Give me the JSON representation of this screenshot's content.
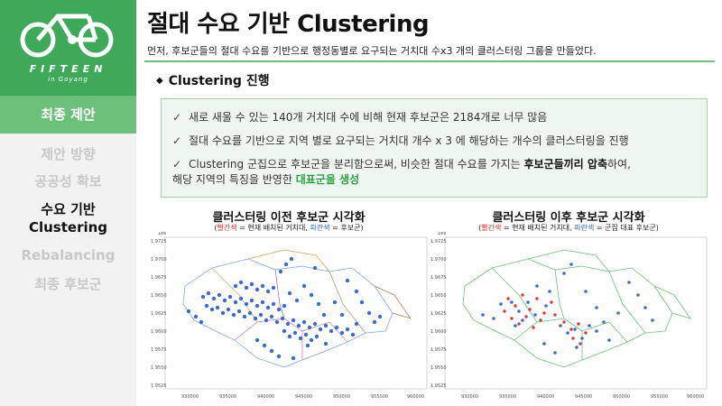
{
  "brand": {
    "name": "FIFTEEN",
    "sub": "in Goyang",
    "color": "#3fa95a"
  },
  "sidebar": {
    "active_section": "최종 제안",
    "items": [
      {
        "label": "제안 방향",
        "current": false
      },
      {
        "label": "공공성 확보",
        "current": false
      },
      {
        "label": "수요 기반\nClustering",
        "current": true
      },
      {
        "label": "Rebalancing",
        "current": false
      },
      {
        "label": "최종 후보군",
        "current": false
      }
    ]
  },
  "header": {
    "title": "절대 수요 기반 Clustering",
    "subtitle": "먼저, 후보군들의 절대 수요를 기반으로 행정동별로 요구되는 거치대 수x3 개의 클러스터링 그룹을 만들었다."
  },
  "section": {
    "marker": "◆",
    "title": "Clustering 진행"
  },
  "bullets": [
    {
      "check": "✓",
      "text": "새로 새울 수 있는 140개 거치대 수에 비해 현재 후보군은 2184개로 너무 많음"
    },
    {
      "check": "✓",
      "text": "절대 수요를 기반으로 지역 별로 요구되는 거치대 개수 x 3 에 해당하는 개수의 클러스터링을 진행"
    },
    {
      "check": "✓",
      "part1": "Clustering 군집으로 후보군을 분리함으로써, 비슷한 절대 수요를 가지는 ",
      "bold": "후보군들끼리 압축",
      "part2": "하여,",
      "line2a": "해당 지역의 특징을 반영한 ",
      "green": "대표군을 생성"
    }
  ],
  "charts": {
    "left": {
      "title": "클러스터링 이전 후보군 시각화",
      "legend_red": "빨간색",
      "legend_mid": " = 현재 배치된 거치대, ",
      "legend_blue": "파란색",
      "legend_end": " = 후보군)",
      "legend_open": "(",
      "exp": "1e6",
      "y_ticks": [
        "1.9725",
        "1.9700",
        "1.9675",
        "1.9650",
        "1.9625",
        "1.9600",
        "1.9575",
        "1.9550",
        "1.9525"
      ],
      "x_ticks": [
        "930000",
        "935000",
        "940000",
        "945000",
        "950000",
        "955000",
        "960000"
      ]
    },
    "right": {
      "title": "클러스터링 이후 후보군 시각화",
      "legend_red": "빨간색",
      "legend_mid": " = 현재 배치된 거치대, ",
      "legend_blue": "파란색",
      "legend_end": " = 군집 대표 후보군)",
      "legend_open": "(",
      "exp": "1e6",
      "y_ticks": [
        "1.9725",
        "1.9700",
        "1.9675",
        "1.9650",
        "1.9625",
        "1.9600",
        "1.9575",
        "1.9550",
        "1.9525"
      ],
      "x_ticks": [
        "930000",
        "935000",
        "940000",
        "945000",
        "950000",
        "955000",
        "960000"
      ]
    }
  },
  "colors": {
    "accent_green": "#6cc07a",
    "point_blue": "#3d6cd0",
    "point_red": "#d83a3a"
  }
}
